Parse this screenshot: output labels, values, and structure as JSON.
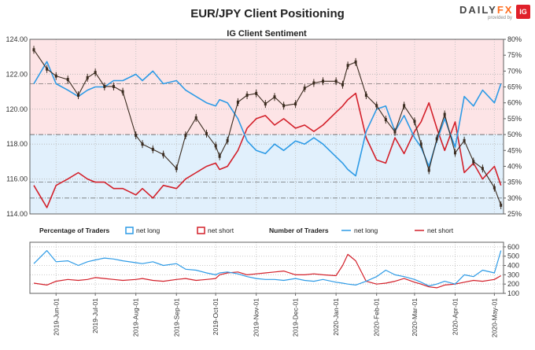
{
  "title": "EUR/JPY Client Positioning",
  "brand": {
    "logo_text_a": "DAILY",
    "logo_text_b": "FX",
    "logo_sub": "provided by",
    "logo_badge": "IG"
  },
  "colors": {
    "price": "#3b2c20",
    "net_long": "#2e9be6",
    "net_short": "#d3202a",
    "bg_top": "#fde4e6",
    "bg_bottom": "#e1f0fc",
    "grid": "#9a9a9a",
    "border": "#606060"
  },
  "chart_data": [
    {
      "type": "line",
      "title": "IG Client Sentiment",
      "y_left": {
        "ticks": [
          "114.00",
          "116.00",
          "118.00",
          "120.00",
          "122.00",
          "124.00"
        ],
        "range": [
          114,
          124
        ]
      },
      "y_right": {
        "ticks": [
          "25%",
          "30%",
          "35%",
          "40%",
          "45%",
          "50%",
          "55%",
          "60%",
          "65%",
          "70%",
          "75%",
          "80%"
        ],
        "range": [
          25,
          80
        ]
      },
      "reference_lines_pct": [
        30,
        35,
        50,
        66
      ],
      "series": [
        {
          "name": "price",
          "axis": "left",
          "x": [
            "2019-05-15",
            "2019-05-25",
            "2019-06-01",
            "2019-06-10",
            "2019-06-18",
            "2019-06-25",
            "2019-07-01",
            "2019-07-08",
            "2019-07-15",
            "2019-07-22",
            "2019-08-01",
            "2019-08-06",
            "2019-08-14",
            "2019-08-22",
            "2019-09-01",
            "2019-09-08",
            "2019-09-16",
            "2019-09-24",
            "2019-10-01",
            "2019-10-04",
            "2019-10-10",
            "2019-10-18",
            "2019-10-25",
            "2019-11-01",
            "2019-11-08",
            "2019-11-15",
            "2019-11-22",
            "2019-12-01",
            "2019-12-08",
            "2019-12-15",
            "2019-12-22",
            "2020-01-01",
            "2020-01-06",
            "2020-01-10",
            "2020-01-16",
            "2020-01-24",
            "2020-02-01",
            "2020-02-08",
            "2020-02-15",
            "2020-02-22",
            "2020-03-01",
            "2020-03-06",
            "2020-03-12",
            "2020-03-18",
            "2020-03-24",
            "2020-04-01",
            "2020-04-08",
            "2020-04-15",
            "2020-04-22",
            "2020-05-01",
            "2020-05-06"
          ],
          "values": [
            123.4,
            122.3,
            121.9,
            121.7,
            120.8,
            121.8,
            122.1,
            121.3,
            121.3,
            121.0,
            118.5,
            118.0,
            117.7,
            117.4,
            116.6,
            118.5,
            119.5,
            118.6,
            117.9,
            117.3,
            118.2,
            120.4,
            120.8,
            120.9,
            120.3,
            120.7,
            120.2,
            120.3,
            121.2,
            121.5,
            121.6,
            121.6,
            121.4,
            122.5,
            122.7,
            120.8,
            120.2,
            119.4,
            118.7,
            120.2,
            119.3,
            118.0,
            116.5,
            118.3,
            119.7,
            117.5,
            118.2,
            117.0,
            116.6,
            115.5,
            114.5
          ]
        },
        {
          "name": "net long",
          "axis": "right",
          "x": [
            "2019-05-15",
            "2019-05-25",
            "2019-06-01",
            "2019-06-10",
            "2019-06-18",
            "2019-06-25",
            "2019-07-01",
            "2019-07-08",
            "2019-07-15",
            "2019-07-22",
            "2019-08-01",
            "2019-08-06",
            "2019-08-14",
            "2019-08-22",
            "2019-09-01",
            "2019-09-08",
            "2019-09-16",
            "2019-09-24",
            "2019-10-01",
            "2019-10-04",
            "2019-10-10",
            "2019-10-18",
            "2019-10-25",
            "2019-11-01",
            "2019-11-08",
            "2019-11-15",
            "2019-11-22",
            "2019-12-01",
            "2019-12-08",
            "2019-12-15",
            "2019-12-22",
            "2020-01-01",
            "2020-01-06",
            "2020-01-10",
            "2020-01-16",
            "2020-01-24",
            "2020-02-01",
            "2020-02-08",
            "2020-02-15",
            "2020-02-22",
            "2020-03-01",
            "2020-03-06",
            "2020-03-12",
            "2020-03-18",
            "2020-03-24",
            "2020-04-01",
            "2020-04-08",
            "2020-04-15",
            "2020-04-22",
            "2020-05-01",
            "2020-05-06"
          ],
          "values": [
            66,
            73,
            66,
            64,
            62,
            64,
            65,
            65,
            67,
            67,
            69,
            67,
            70,
            66,
            67,
            64,
            62,
            60,
            59,
            61,
            60,
            55,
            48,
            45,
            44,
            47,
            45,
            48,
            47,
            49,
            47,
            43,
            41,
            39,
            37,
            51,
            58,
            59,
            51,
            56,
            49,
            46,
            40,
            48,
            55,
            46,
            62,
            59,
            64,
            60,
            66
          ]
        },
        {
          "name": "net short",
          "axis": "right",
          "x": [
            "2019-05-15",
            "2019-05-25",
            "2019-06-01",
            "2019-06-10",
            "2019-06-18",
            "2019-06-25",
            "2019-07-01",
            "2019-07-08",
            "2019-07-15",
            "2019-07-22",
            "2019-08-01",
            "2019-08-06",
            "2019-08-14",
            "2019-08-22",
            "2019-09-01",
            "2019-09-08",
            "2019-09-16",
            "2019-09-24",
            "2019-10-01",
            "2019-10-04",
            "2019-10-10",
            "2019-10-18",
            "2019-10-25",
            "2019-11-01",
            "2019-11-08",
            "2019-11-15",
            "2019-11-22",
            "2019-12-01",
            "2019-12-08",
            "2019-12-15",
            "2019-12-22",
            "2020-01-01",
            "2020-01-06",
            "2020-01-10",
            "2020-01-16",
            "2020-01-24",
            "2020-02-01",
            "2020-02-08",
            "2020-02-15",
            "2020-02-22",
            "2020-03-01",
            "2020-03-06",
            "2020-03-12",
            "2020-03-18",
            "2020-03-24",
            "2020-04-01",
            "2020-04-08",
            "2020-04-15",
            "2020-04-22",
            "2020-05-01",
            "2020-05-06"
          ],
          "values": [
            34,
            27,
            34,
            36,
            38,
            36,
            35,
            35,
            33,
            33,
            31,
            33,
            30,
            34,
            33,
            36,
            38,
            40,
            41,
            39,
            40,
            45,
            52,
            55,
            56,
            53,
            55,
            52,
            53,
            51,
            53,
            57,
            59,
            61,
            63,
            49,
            42,
            41,
            49,
            44,
            51,
            54,
            60,
            52,
            45,
            54,
            38,
            41,
            36,
            40,
            34
          ]
        }
      ]
    },
    {
      "type": "line",
      "title": "",
      "legend": {
        "pct_label": "Percentage of Traders",
        "pct_long": "net long",
        "pct_short": "net short",
        "num_label": "Number of Traders",
        "num_long": "net long",
        "num_short": "net short"
      },
      "y_right": {
        "ticks": [
          "100",
          "200",
          "300",
          "400",
          "500",
          "600"
        ],
        "range": [
          100,
          650
        ]
      },
      "x_ticks": [
        "2019-Jun-01",
        "2019-Jul-01",
        "2019-Aug-01",
        "2019-Sep-01",
        "2019-Oct-01",
        "2019-Nov-01",
        "2019-Dec-01",
        "2020-Jan-01",
        "2020-Feb-01",
        "2020-Mar-01",
        "2020-Apr-01",
        "2020-May-01"
      ],
      "series": [
        {
          "name": "net long",
          "x": [
            "2019-05-15",
            "2019-05-25",
            "2019-06-01",
            "2019-06-10",
            "2019-06-18",
            "2019-06-25",
            "2019-07-01",
            "2019-07-08",
            "2019-07-15",
            "2019-07-22",
            "2019-08-01",
            "2019-08-06",
            "2019-08-14",
            "2019-08-22",
            "2019-09-01",
            "2019-09-08",
            "2019-09-16",
            "2019-09-24",
            "2019-10-01",
            "2019-10-04",
            "2019-10-10",
            "2019-10-18",
            "2019-10-25",
            "2019-11-01",
            "2019-11-08",
            "2019-11-15",
            "2019-11-22",
            "2019-12-01",
            "2019-12-08",
            "2019-12-15",
            "2019-12-22",
            "2020-01-01",
            "2020-01-06",
            "2020-01-10",
            "2020-01-16",
            "2020-01-24",
            "2020-02-01",
            "2020-02-08",
            "2020-02-15",
            "2020-02-22",
            "2020-03-01",
            "2020-03-06",
            "2020-03-12",
            "2020-03-18",
            "2020-03-24",
            "2020-04-01",
            "2020-04-08",
            "2020-04-15",
            "2020-04-22",
            "2020-05-01",
            "2020-05-06"
          ],
          "values": [
            420,
            560,
            440,
            450,
            400,
            440,
            460,
            480,
            470,
            450,
            430,
            420,
            440,
            400,
            420,
            360,
            350,
            320,
            300,
            320,
            330,
            310,
            280,
            260,
            250,
            250,
            240,
            260,
            240,
            230,
            250,
            220,
            210,
            200,
            190,
            230,
            280,
            350,
            300,
            280,
            250,
            220,
            180,
            200,
            230,
            200,
            300,
            280,
            350,
            320,
            560
          ]
        },
        {
          "name": "net short",
          "x": [
            "2019-05-15",
            "2019-05-25",
            "2019-06-01",
            "2019-06-10",
            "2019-06-18",
            "2019-06-25",
            "2019-07-01",
            "2019-07-08",
            "2019-07-15",
            "2019-07-22",
            "2019-08-01",
            "2019-08-06",
            "2019-08-14",
            "2019-08-22",
            "2019-09-01",
            "2019-09-08",
            "2019-09-16",
            "2019-09-24",
            "2019-10-01",
            "2019-10-04",
            "2019-10-10",
            "2019-10-18",
            "2019-10-25",
            "2019-11-01",
            "2019-11-08",
            "2019-11-15",
            "2019-11-22",
            "2019-12-01",
            "2019-12-08",
            "2019-12-15",
            "2019-12-22",
            "2020-01-01",
            "2020-01-06",
            "2020-01-10",
            "2020-01-16",
            "2020-01-24",
            "2020-02-01",
            "2020-02-08",
            "2020-02-15",
            "2020-02-22",
            "2020-03-01",
            "2020-03-06",
            "2020-03-12",
            "2020-03-18",
            "2020-03-24",
            "2020-04-01",
            "2020-04-08",
            "2020-04-15",
            "2020-04-22",
            "2020-05-01",
            "2020-05-06"
          ],
          "values": [
            210,
            190,
            230,
            250,
            240,
            250,
            270,
            260,
            250,
            240,
            250,
            260,
            240,
            230,
            250,
            260,
            240,
            250,
            260,
            300,
            320,
            330,
            300,
            310,
            320,
            330,
            340,
            300,
            300,
            310,
            300,
            290,
            400,
            520,
            450,
            230,
            200,
            210,
            230,
            260,
            220,
            200,
            170,
            160,
            190,
            200,
            220,
            240,
            230,
            250,
            290
          ]
        }
      ]
    }
  ]
}
